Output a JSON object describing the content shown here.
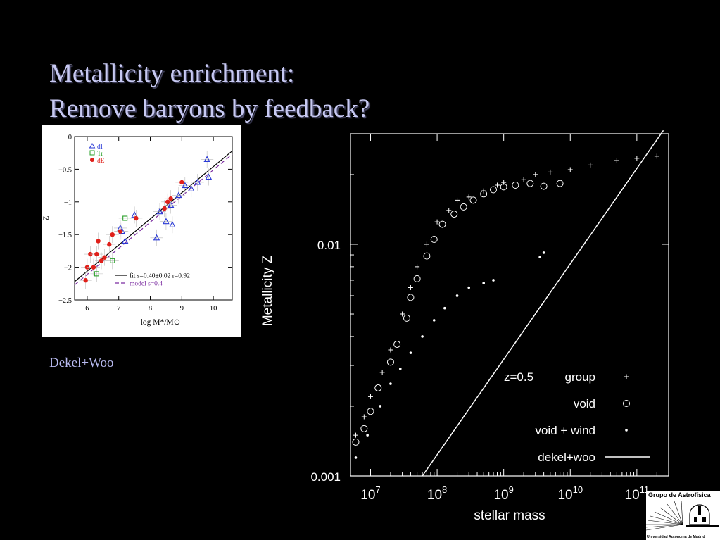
{
  "title": {
    "line1": "Metallicity enrichment:",
    "line2": "Remove baryons by feedback?"
  },
  "caption": "Dekel+Woo",
  "logo": {
    "top_text": "Grupo de Astrofísica",
    "bottom_text": "Universidad Autónoma de Madrid",
    "icon": "observatory-dome-logo"
  },
  "chart_data": [
    {
      "type": "scatter",
      "title": "",
      "xlabel": "log M*/M⊙",
      "ylabel": "Z",
      "xlim": [
        5.6,
        10.6
      ],
      "ylim": [
        -2.5,
        0
      ],
      "xticks": [
        6,
        7,
        8,
        9,
        10
      ],
      "yticks": [
        0,
        -0.5,
        -1,
        -1.5,
        -2,
        -2.5
      ],
      "ytick_labels": [
        "0",
        "−0.5",
        "−1",
        "−1.5",
        "−2",
        "−2.5"
      ],
      "legend_position": "top-left",
      "series": [
        {
          "name": "dI",
          "marker": "triangle",
          "color": "#2a3ad6",
          "points": [
            [
              7.1,
              -1.45
            ],
            [
              7.2,
              -1.6
            ],
            [
              7.05,
              -1.4
            ],
            [
              8.2,
              -1.55
            ],
            [
              8.3,
              -1.15
            ],
            [
              8.5,
              -1.3
            ],
            [
              8.7,
              -1.35
            ],
            [
              8.9,
              -0.9
            ],
            [
              9.1,
              -0.75
            ],
            [
              9.3,
              -0.8
            ],
            [
              9.5,
              -0.7
            ],
            [
              9.8,
              -0.35
            ],
            [
              9.85,
              -0.62
            ],
            [
              8.65,
              -1.05
            ],
            [
              7.5,
              -1.2
            ]
          ]
        },
        {
          "name": "Tr",
          "marker": "square",
          "color": "#2aa02a",
          "points": [
            [
              6.3,
              -2.1
            ],
            [
              6.8,
              -1.9
            ],
            [
              7.2,
              -1.25
            ]
          ]
        },
        {
          "name": "dE",
          "marker": "circle",
          "color": "#e0201a",
          "points": [
            [
              5.95,
              -2.2
            ],
            [
              6.0,
              -2.0
            ],
            [
              6.1,
              -1.8
            ],
            [
              6.2,
              -2.0
            ],
            [
              6.3,
              -1.8
            ],
            [
              6.35,
              -1.6
            ],
            [
              6.45,
              -1.9
            ],
            [
              6.55,
              -1.85
            ],
            [
              6.7,
              -1.65
            ],
            [
              6.8,
              -1.5
            ],
            [
              7.05,
              -1.45
            ],
            [
              7.55,
              -1.25
            ],
            [
              8.45,
              -1.1
            ],
            [
              8.55,
              -1.0
            ],
            [
              8.65,
              -0.95
            ],
            [
              9.0,
              -0.7
            ]
          ]
        }
      ],
      "lines": [
        {
          "name": "fit  s=0.40±0.02   r=0.92",
          "style": "solid",
          "color": "#000000",
          "x": [
            5.6,
            10.6
          ],
          "y": [
            -2.22,
            -0.22
          ]
        },
        {
          "name": "model s=0.4",
          "style": "dashed",
          "color": "#7a2aa0",
          "x": [
            5.6,
            10.6
          ],
          "y": [
            -2.27,
            -0.27
          ]
        }
      ]
    },
    {
      "type": "scatter",
      "title": "",
      "xlabel": "stellar mass",
      "ylabel": "Metallicity Z",
      "x_scale": "log",
      "y_scale": "log",
      "xlim": [
        5000000,
        300000000000
      ],
      "ylim": [
        0.001,
        0.03
      ],
      "xtick_bases": [
        "10",
        "10",
        "10",
        "10",
        "10"
      ],
      "xtick_exps": [
        "7",
        "8",
        "9",
        "10",
        "11"
      ],
      "xtick_values": [
        10000000,
        100000000,
        1000000000,
        10000000000,
        100000000000
      ],
      "ytick_labels": [
        "0.01",
        "0.001"
      ],
      "ytick_values": [
        0.01,
        0.001
      ],
      "legend_header": "z=0.5",
      "legend_position": "bottom-right",
      "series": [
        {
          "name": "group",
          "marker": "plus",
          "color": "#ffffff",
          "points": [
            [
              6000000.0,
              0.0015
            ],
            [
              8000000.0,
              0.0018
            ],
            [
              10000000.0,
              0.0022
            ],
            [
              15000000.0,
              0.0028
            ],
            [
              20000000.0,
              0.0035
            ],
            [
              30000000.0,
              0.005
            ],
            [
              40000000.0,
              0.0065
            ],
            [
              50000000.0,
              0.008
            ],
            [
              70000000.0,
              0.01
            ],
            [
              100000000.0,
              0.0125
            ],
            [
              150000000.0,
              0.014
            ],
            [
              200000000.0,
              0.0155
            ],
            [
              300000000.0,
              0.016
            ],
            [
              500000000.0,
              0.017
            ],
            [
              800000000.0,
              0.018
            ],
            [
              1000000000.0,
              0.0185
            ],
            [
              2000000000.0,
              0.019
            ],
            [
              3000000000.0,
              0.02
            ],
            [
              5000000000.0,
              0.0205
            ],
            [
              10000000000.0,
              0.021
            ],
            [
              20000000000.0,
              0.022
            ],
            [
              50000000000.0,
              0.023
            ],
            [
              100000000000.0,
              0.0235
            ],
            [
              200000000000.0,
              0.024
            ]
          ]
        },
        {
          "name": "void",
          "marker": "open-circle",
          "color": "#ffffff",
          "points": [
            [
              6000000.0,
              0.0014
            ],
            [
              8000000.0,
              0.0016
            ],
            [
              10000000.0,
              0.0019
            ],
            [
              13000000.0,
              0.0024
            ],
            [
              20000000.0,
              0.0031
            ],
            [
              25000000.0,
              0.0037
            ],
            [
              35000000.0,
              0.0048
            ],
            [
              40000000.0,
              0.0059
            ],
            [
              50000000.0,
              0.0071
            ],
            [
              70000000.0,
              0.0089
            ],
            [
              90000000.0,
              0.0105
            ],
            [
              120000000.0,
              0.0122
            ],
            [
              180000000.0,
              0.0135
            ],
            [
              250000000.0,
              0.0145
            ],
            [
              350000000.0,
              0.0155
            ],
            [
              500000000.0,
              0.0165
            ],
            [
              700000000.0,
              0.0172
            ],
            [
              1000000000.0,
              0.0177
            ],
            [
              1500000000.0,
              0.018
            ],
            [
              2500000000.0,
              0.0183
            ],
            [
              4000000000.0,
              0.0178
            ],
            [
              7000000000.0,
              0.0183
            ]
          ]
        },
        {
          "name": "void + wind",
          "marker": "dot",
          "color": "#ffffff",
          "points": [
            [
              6000000.0,
              0.0012
            ],
            [
              9000000.0,
              0.0015
            ],
            [
              14000000.0,
              0.002
            ],
            [
              20000000.0,
              0.0025
            ],
            [
              28000000.0,
              0.0029
            ],
            [
              40000000.0,
              0.0034
            ],
            [
              60000000.0,
              0.004
            ],
            [
              90000000.0,
              0.0047
            ],
            [
              130000000.0,
              0.0053
            ],
            [
              200000000.0,
              0.006
            ],
            [
              300000000.0,
              0.0065
            ],
            [
              500000000.0,
              0.0068
            ],
            [
              700000000.0,
              0.007
            ],
            [
              3500000000.0,
              0.0088
            ],
            [
              4000000000.0,
              0.0092
            ]
          ]
        }
      ],
      "lines": [
        {
          "name": "dekel+woo",
          "style": "solid",
          "color": "#ffffff",
          "x": [
            60000000,
            250000000000
          ],
          "y": [
            0.001,
            0.031
          ]
        }
      ]
    }
  ]
}
